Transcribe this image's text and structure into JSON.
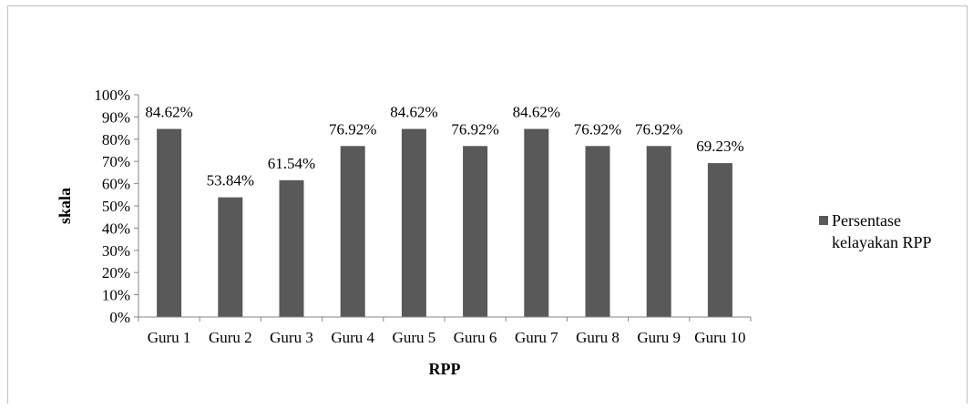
{
  "chart_data": {
    "type": "bar",
    "categories": [
      "Guru 1",
      "Guru 2",
      "Guru 3",
      "Guru 4",
      "Guru 5",
      "Guru 6",
      "Guru 7",
      "Guru 8",
      "Guru 9",
      "Guru 10"
    ],
    "series": [
      {
        "name": "Persentase kelayakan RPP",
        "name_lines": [
          "Persentase",
          "kelayakan RPP"
        ],
        "values": [
          84.62,
          53.84,
          61.54,
          76.92,
          84.62,
          76.92,
          84.62,
          76.92,
          76.92,
          69.23
        ],
        "value_labels": [
          "84.62%",
          "53.84%",
          "61.54%",
          "76.92%",
          "84.62%",
          "76.92%",
          "84.62%",
          "76.92%",
          "76.92%",
          "69.23%"
        ],
        "color": "#595959"
      }
    ],
    "title": "",
    "xlabel": "RPP",
    "ylabel": "skala",
    "ylim": [
      0,
      100
    ],
    "yticks": [
      "0%",
      "10%",
      "20%",
      "30%",
      "40%",
      "50%",
      "60%",
      "70%",
      "80%",
      "90%",
      "100%"
    ],
    "grid": false,
    "legend_position": "right"
  }
}
